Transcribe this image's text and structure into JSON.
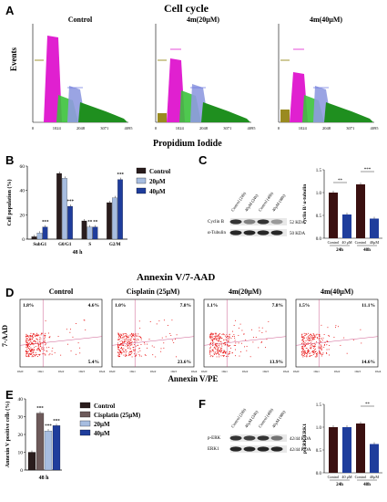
{
  "panel_a": {
    "letter": "A",
    "title": "Cell cycle",
    "subtitles": [
      "Control",
      "4m(20μM)",
      "4m(40μM)"
    ],
    "ylabel": "Events",
    "xlabel": "Propidium Iodide",
    "ticks": [
      "0",
      "1024",
      "2048",
      "3071",
      "4095"
    ]
  },
  "panel_b": {
    "letter": "B",
    "ylabel": "Cell population (%)",
    "xlabel": "48 h",
    "legend": [
      "Control",
      "20μM",
      "40μM"
    ],
    "colors": [
      "#2a1d1d",
      "#a7bde0",
      "#1f3d9c"
    ],
    "ylim": [
      0,
      60
    ],
    "yticks": [
      "0",
      "20",
      "40",
      "60"
    ]
  },
  "panel_c": {
    "letter": "C",
    "lanes": [
      "Control (24h)",
      "40μM (24h)",
      "Control (48h)",
      "40μM (48h)"
    ],
    "rows": [
      {
        "label": "Cyclin B",
        "kda": "52 KDA"
      },
      {
        "label": "α-Tubulin",
        "kda": "50 KDA"
      }
    ],
    "ylabel": "cyclin B/ α-tubulin",
    "yticks": [
      "0.0",
      "0.5",
      "1.0",
      "1.5"
    ],
    "xlabels": [
      "Control",
      "40 μM",
      "Control",
      "40μM"
    ],
    "groups": [
      "24h",
      "48h"
    ],
    "sig": [
      "**",
      "***"
    ]
  },
  "panel_d": {
    "letter": "D",
    "title": "Annexin V/7-AAD",
    "subtitles": [
      "Control",
      "Cisplatin (25μM)",
      "4m(20μM)",
      "4m(40μM)"
    ],
    "ylabel": "7-AAD",
    "xlabel": "Annexin V/PE",
    "quadrants": [
      {
        "ul": "1.8%",
        "ur": "4.6%",
        "lr": "5.4%"
      },
      {
        "ul": "1.0%",
        "ur": "7.8%",
        "lr": "23.6%"
      },
      {
        "ul": "1.1%",
        "ur": "7.8%",
        "lr": "13.9%"
      },
      {
        "ul": "1.5%",
        "ur": "11.1%",
        "lr": "14.6%"
      }
    ],
    "ticks": [
      "10e0",
      "10e1",
      "10e2",
      "10e3",
      "10e4"
    ]
  },
  "panel_e": {
    "letter": "E",
    "ylabel": "Annexin V positive cells (%)",
    "xlabel": "48 h",
    "legend": [
      "Control",
      "Cisplatin (25μM)",
      "20μM",
      "40μM"
    ],
    "colors": [
      "#2a1d1d",
      "#6d5a5a",
      "#a7bde0",
      "#1f3d9c"
    ],
    "yticks": [
      "0",
      "10",
      "20",
      "30",
      "40"
    ],
    "sig": "***"
  },
  "panel_f": {
    "letter": "F",
    "lanes": [
      "Control (24h)",
      "40μM (24h)",
      "Control (48h)",
      "40μM (48h)"
    ],
    "rows": [
      {
        "label": "p-ERK",
        "kda": "42/44 KDA"
      },
      {
        "label": "ERK1",
        "kda": "42/44 KDA"
      }
    ],
    "ylabel": "p-ERK/ERK1",
    "yticks": [
      "0.0",
      "0.5",
      "1.0",
      "1.5"
    ],
    "xlabels": [
      "Control",
      "40 μM",
      "Control",
      "40μM"
    ],
    "groups": [
      "24h",
      "48h"
    ],
    "sig": "**"
  },
  "chart_data": [
    {
      "type": "bar",
      "ylabel": "Cell population (%)",
      "xlabel": "48 h",
      "categories": [
        "SubG1",
        "G0/G1",
        "S",
        "G2/M"
      ],
      "ylim": [
        0,
        60
      ],
      "series": [
        {
          "name": "Control",
          "values": [
            2,
            54,
            15,
            30
          ]
        },
        {
          "name": "20μM",
          "values": [
            5,
            50,
            10,
            34
          ]
        },
        {
          "name": "40μM",
          "values": [
            10,
            27,
            10,
            49
          ]
        }
      ]
    },
    {
      "type": "bar",
      "ylabel": "cyclin B/ α-tubulin",
      "categories": [
        "Control",
        "40 μM",
        "Control",
        "40μM"
      ],
      "ylim": [
        0,
        1.5
      ],
      "values": [
        1.0,
        0.52,
        1.18,
        0.43
      ]
    },
    {
      "type": "bar",
      "ylabel": "Annexin V positive cells (%)",
      "xlabel": "48 h",
      "categories": [
        "Control",
        "Cisplatin (25μM)",
        "20μM",
        "40μM"
      ],
      "ylim": [
        0,
        40
      ],
      "values": [
        10,
        32,
        22,
        25
      ]
    },
    {
      "type": "bar",
      "ylabel": "p-ERK/ERK1",
      "categories": [
        "Control",
        "40 μM",
        "Control",
        "40μM"
      ],
      "ylim": [
        0,
        1.5
      ],
      "values": [
        1.0,
        1.0,
        1.08,
        0.63
      ]
    }
  ]
}
